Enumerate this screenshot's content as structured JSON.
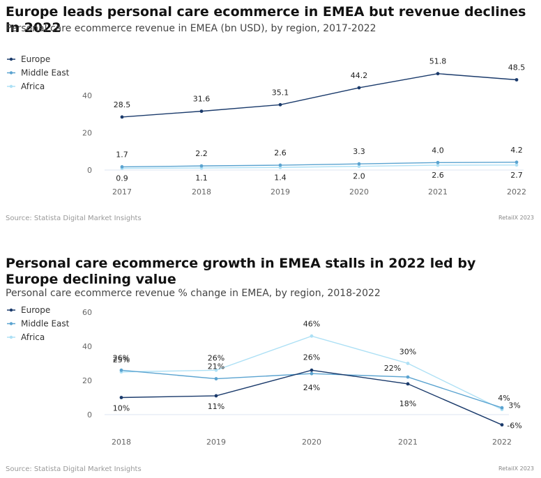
{
  "chart_data": [
    {
      "type": "line",
      "title": "Europe leads personal care ecommerce in EMEA but revenue declines in 2022",
      "subtitle": "Personal care ecommerce revenue in EMEA (bn USD), by region, 2017-2022",
      "x": [
        "2017",
        "2018",
        "2019",
        "2020",
        "2021",
        "2022"
      ],
      "series": [
        {
          "name": "Europe",
          "color": "#1a3a6b",
          "values": [
            28.5,
            31.6,
            35.1,
            44.2,
            51.8,
            48.5
          ],
          "labels": [
            "28.5",
            "31.6",
            "35.1",
            "44.2",
            "51.8",
            "48.5"
          ]
        },
        {
          "name": "Middle East",
          "color": "#5aa3d0",
          "values": [
            1.7,
            2.2,
            2.6,
            3.3,
            4.0,
            4.2
          ],
          "labels": [
            "1.7",
            "2.2",
            "2.6",
            "3.3",
            "4.0",
            "4.2"
          ]
        },
        {
          "name": "Africa",
          "color": "#ade0f5",
          "values": [
            0.9,
            1.1,
            1.4,
            2.0,
            2.6,
            2.7
          ],
          "labels": [
            "0.9",
            "1.1",
            "1.4",
            "2.0",
            "2.6",
            "2.7"
          ]
        }
      ],
      "yticks": [
        0,
        20,
        40
      ],
      "ylim": [
        0,
        56
      ],
      "source": "Source: Statista Digital Market Insights",
      "credit": "RetailX 2023"
    },
    {
      "type": "line",
      "title": "Personal care ecommerce growth in EMEA stalls in 2022 led by Europe declining value",
      "subtitle": "Personal care ecommerce revenue % change in EMEA, by region, 2018-2022",
      "x": [
        "2018",
        "2019",
        "2020",
        "2021",
        "2022"
      ],
      "series": [
        {
          "name": "Europe",
          "color": "#1a3a6b",
          "values": [
            10,
            11,
            26,
            18,
            -6
          ],
          "labels": [
            "10%",
            "11%",
            "26%",
            "18%",
            "-6%"
          ]
        },
        {
          "name": "Middle East",
          "color": "#5aa3d0",
          "values": [
            26,
            21,
            24,
            22,
            4
          ],
          "labels": [
            "26%",
            "21%",
            "24%",
            "22%",
            "4%"
          ]
        },
        {
          "name": "Africa",
          "color": "#ade0f5",
          "values": [
            25,
            26,
            46,
            30,
            3
          ],
          "labels": [
            "25%",
            "26%",
            "46%",
            "30%",
            "3%"
          ]
        }
      ],
      "yticks": [
        0,
        20,
        40,
        60
      ],
      "ylim": [
        -10,
        60
      ],
      "source": "Source: Statista Digital Market Insights",
      "credit": "RetailX 2023"
    }
  ]
}
